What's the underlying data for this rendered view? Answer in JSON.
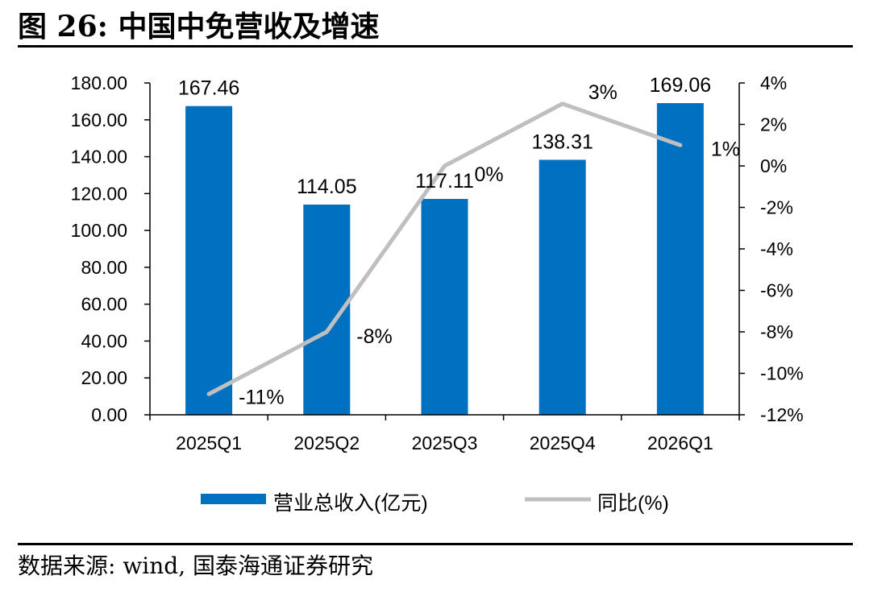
{
  "title": "图 26:  中国中免营收及增速",
  "source": "数据来源:  wind,  国泰海通证券研究",
  "chart_data": {
    "type": "bar",
    "categories": [
      "2025Q1",
      "2025Q2",
      "2025Q3",
      "2025Q4",
      "2026Q1"
    ],
    "series": [
      {
        "name": "营业总收入(亿元)",
        "type": "bar",
        "axis": "left",
        "values": [
          167.46,
          114.05,
          117.11,
          138.31,
          169.06
        ],
        "labels": [
          "167.46",
          "114.05",
          "117.11",
          "138.31",
          "169.06"
        ],
        "color": "#0070C0"
      },
      {
        "name": "同比(%)",
        "type": "line",
        "axis": "right",
        "values": [
          -11,
          -8,
          0,
          3,
          1
        ],
        "labels": [
          "-11%",
          "-8%",
          "0%",
          "3%",
          "1%"
        ],
        "color": "#BFBFBF"
      }
    ],
    "y_left": {
      "range": [
        0,
        180
      ],
      "ticks": [
        "0.00",
        "20.00",
        "40.00",
        "60.00",
        "80.00",
        "100.00",
        "120.00",
        "140.00",
        "160.00",
        "180.00"
      ]
    },
    "y_right": {
      "range": [
        -12,
        4
      ],
      "ticks": [
        "-12%",
        "-10%",
        "-8%",
        "-6%",
        "-4%",
        "-2%",
        "0%",
        "2%",
        "4%"
      ]
    },
    "grid": false,
    "legend": "bottom",
    "legend_labels": [
      "营业总收入(亿元)",
      "同比(%)"
    ]
  }
}
